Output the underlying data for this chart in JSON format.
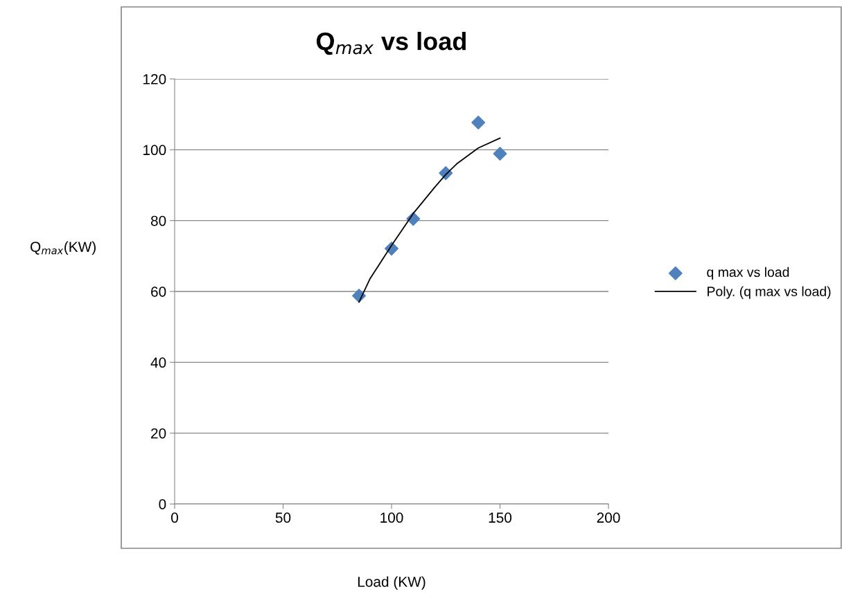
{
  "chart_data": {
    "type": "scatter",
    "title": "Q$_{max}$ vs load",
    "xlabel": "Load (KW)",
    "ylabel": "Q$_{max}$(KW)",
    "series": [
      {
        "name": "q max vs load",
        "color": "#4f81bd",
        "marker": "diamond",
        "x": [
          85,
          100,
          110,
          125,
          140,
          150
        ],
        "values": [
          58.8,
          72.1,
          80.5,
          93.4,
          107.7,
          98.9
        ]
      },
      {
        "name": "Poly. (q max vs load)",
        "type": "line",
        "color": "#000000",
        "marker": "none",
        "line_style": "solid",
        "x": [
          85,
          90,
          100,
          110,
          120,
          125,
          130,
          140,
          150
        ],
        "values": [
          57,
          63.5,
          73,
          82,
          89.5,
          93,
          96,
          100.5,
          103.3
        ]
      }
    ],
    "xlim": [
      0,
      200
    ],
    "xticks": [
      0,
      50,
      100,
      150,
      200
    ],
    "ylim": [
      0,
      120
    ],
    "yticks": [
      0,
      20,
      40,
      60,
      80,
      100,
      120
    ],
    "grid": "y",
    "legend": "right"
  }
}
